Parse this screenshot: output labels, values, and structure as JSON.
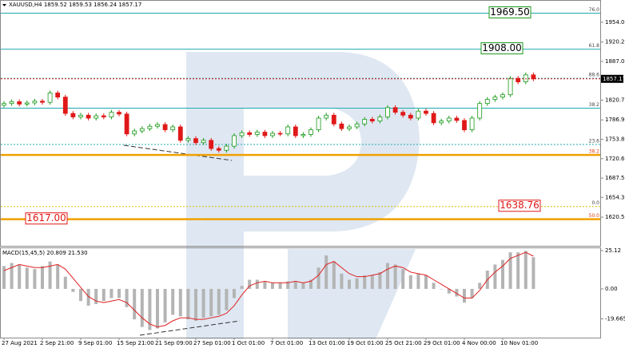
{
  "chart_data": [
    {
      "type": "candlestick",
      "title": "XAUUSD,H4 1859.52 1859.53 1856.24 1857.17",
      "categories": [
        "27 Aug 2021",
        null,
        null,
        null,
        null,
        "2 Sep 21:00",
        null,
        null,
        null,
        null,
        "9 Sep 01:00",
        null,
        null,
        null,
        null,
        "15 Sep 21:00",
        null,
        null,
        null,
        null,
        "21 Sep 09:00",
        null,
        null,
        null,
        null,
        "27 Sep 01:00",
        null,
        null,
        null,
        null,
        "1 Oct 01:00",
        null,
        null,
        null,
        null,
        "7 Oct 01:00",
        null,
        null,
        null,
        null,
        "13 Oct 01:00",
        null,
        null,
        null,
        null,
        "19 Oct 01:00",
        null,
        null,
        null,
        null,
        "25 Oct 21:00",
        null,
        null,
        null,
        null,
        "29 Oct 01:00",
        null,
        null,
        null,
        null,
        "4 Nov 00:00",
        null,
        null,
        null,
        null,
        "10 Nov 01:00",
        null,
        null,
        null,
        null
      ],
      "open": [
        1812,
        1815,
        1818,
        1814,
        1816,
        1819,
        1817,
        1833,
        1826,
        1798,
        1792,
        1795,
        1790,
        1794,
        1792,
        1800,
        1797,
        1763,
        1768,
        1772,
        1776,
        1779,
        1770,
        1775,
        1752,
        1755,
        1748,
        1752,
        1738,
        1735,
        1742,
        1760,
        1765,
        1762,
        1766,
        1760,
        1764,
        1763,
        1775,
        1760,
        1762,
        1770,
        1790,
        1795,
        1780,
        1772,
        1775,
        1780,
        1788,
        1785,
        1792,
        1808,
        1800,
        1795,
        1790,
        1802,
        1798,
        1782,
        1785,
        1790,
        1786,
        1770,
        1790,
        1815,
        1822,
        1826,
        1830,
        1858,
        1852,
        1864
      ],
      "high": [
        1819,
        1822,
        1822,
        1820,
        1823,
        1823,
        1837,
        1837,
        1830,
        1802,
        1799,
        1799,
        1798,
        1798,
        1804,
        1804,
        1801,
        1772,
        1776,
        1780,
        1783,
        1783,
        1779,
        1779,
        1759,
        1759,
        1756,
        1756,
        1742,
        1746,
        1764,
        1769,
        1769,
        1770,
        1770,
        1768,
        1768,
        1779,
        1779,
        1766,
        1774,
        1794,
        1799,
        1799,
        1784,
        1779,
        1784,
        1792,
        1792,
        1796,
        1812,
        1812,
        1804,
        1799,
        1806,
        1806,
        1802,
        1789,
        1794,
        1794,
        1790,
        1794,
        1819,
        1826,
        1830,
        1834,
        1862,
        1862,
        1868,
        1868
      ],
      "low": [
        1808,
        1811,
        1810,
        1810,
        1812,
        1813,
        1813,
        1822,
        1794,
        1788,
        1788,
        1786,
        1786,
        1788,
        1788,
        1793,
        1759,
        1759,
        1764,
        1768,
        1772,
        1766,
        1766,
        1748,
        1748,
        1744,
        1744,
        1734,
        1731,
        1731,
        1738,
        1756,
        1758,
        1758,
        1756,
        1756,
        1759,
        1759,
        1756,
        1756,
        1758,
        1766,
        1786,
        1776,
        1768,
        1768,
        1771,
        1776,
        1781,
        1781,
        1788,
        1796,
        1791,
        1786,
        1786,
        1794,
        1778,
        1778,
        1781,
        1782,
        1766,
        1766,
        1786,
        1811,
        1818,
        1822,
        1826,
        1848,
        1848,
        1853.17
      ],
      "close": [
        1815,
        1818,
        1814,
        1816,
        1819,
        1817,
        1833,
        1826,
        1798,
        1792,
        1795,
        1790,
        1794,
        1792,
        1800,
        1797,
        1763,
        1768,
        1772,
        1776,
        1779,
        1770,
        1775,
        1752,
        1755,
        1748,
        1752,
        1738,
        1735,
        1742,
        1760,
        1765,
        1762,
        1766,
        1760,
        1764,
        1763,
        1775,
        1760,
        1762,
        1770,
        1790,
        1795,
        1780,
        1772,
        1775,
        1780,
        1788,
        1785,
        1792,
        1808,
        1800,
        1795,
        1790,
        1802,
        1798,
        1782,
        1785,
        1790,
        1786,
        1770,
        1790,
        1815,
        1822,
        1826,
        1830,
        1858,
        1852,
        1864,
        1857.17
      ],
      "up_color": "#1a9a1a",
      "down_color": "#e01818",
      "ylim": [
        1571.5,
        1990.7
      ],
      "yticks": [
        {
          "value": 1954,
          "label": "1954.00"
        },
        {
          "value": 1920.2,
          "label": "1920.20"
        },
        1887.05,
        1820.75,
        1786.95,
        {
          "value": 1753.8,
          "label": "1753.80"
        },
        1720.65,
        {
          "value": 1687.5,
          "label": "1687.50"
        },
        1654.35,
        1620.55
      ],
      "levels": [
        {
          "value": 1969.5,
          "label": "76.0",
          "color": "#20a8b0",
          "style": "solid"
        },
        {
          "value": 1908,
          "label": "61.8",
          "color": "#20a8b0",
          "style": "solid"
        },
        {
          "value": 1858,
          "label": "88.6",
          "color": "#20a8b0",
          "style": "dotted"
        },
        {
          "value": 1807,
          "label": "38.2",
          "color": "#20a8b0",
          "style": "solid"
        },
        {
          "value": 1745,
          "label": "23.6",
          "color": "#20a8b0",
          "style": "dotted"
        },
        {
          "value": 1727,
          "label": "38.2",
          "color": "#f0a000",
          "style": "thick"
        },
        {
          "value": 1638.76,
          "label": "0.0",
          "color": "#d8c000",
          "style": "dotted"
        },
        {
          "value": 1617,
          "label": "50.0",
          "color": "#f0a000",
          "style": "thick"
        }
      ],
      "callouts": [
        {
          "value": 1969.5,
          "label": "1969.50",
          "color": "#1a9a1a"
        },
        {
          "value": 1908,
          "label": "1908.00",
          "color": "#1a9a1a"
        },
        {
          "value": 1638.76,
          "label": "1638.76",
          "color": "#e01818"
        },
        {
          "value": 1617,
          "label": "1617.00",
          "color": "#e01818"
        }
      ],
      "last_price": {
        "value": 1857.17,
        "label": "1857.17",
        "color": "#e01818"
      }
    },
    {
      "type": "macd",
      "title": "MACD(15,45,5) 20.809 21.530",
      "histogram": {
        "color": "#b4b4b4",
        "values": [
          15,
          17,
          16,
          14,
          13,
          15,
          18,
          16,
          8,
          -2,
          -8,
          -11,
          -10,
          -8,
          -6,
          -6,
          -12,
          -20,
          -25,
          -27,
          -26,
          -22,
          -17,
          -18,
          -20,
          -21,
          -19,
          -18,
          -17,
          -14,
          -6,
          2,
          6,
          6,
          5,
          4,
          4,
          5,
          5,
          4,
          6,
          14,
          22,
          18,
          10,
          6,
          7,
          9,
          9,
          11,
          17,
          16,
          13,
          9,
          10,
          9,
          4,
          0,
          -3,
          -5,
          -9,
          -6,
          4,
          12,
          16,
          19,
          24,
          24,
          25,
          20.809
        ]
      },
      "signal": {
        "color": "#e02020",
        "values": [
          12,
          14,
          16,
          15,
          14,
          14,
          15,
          16,
          13,
          7,
          1,
          -5,
          -8,
          -9,
          -8,
          -7,
          -9,
          -14,
          -19,
          -23,
          -25,
          -24,
          -21,
          -19,
          -19,
          -20,
          -20,
          -19,
          -18,
          -16,
          -11,
          -4,
          2,
          4,
          5,
          4,
          4,
          4,
          5,
          4,
          5,
          9,
          16,
          18,
          14,
          10,
          8,
          8,
          9,
          10,
          13,
          15,
          14,
          11,
          10,
          9,
          6,
          3,
          0,
          -3,
          -6,
          -6,
          -1,
          6,
          11,
          15,
          20,
          22,
          24,
          21.53
        ]
      },
      "ylim": [
        -32,
        26.7
      ],
      "yticks": [
        25.12,
        {
          "value": 0,
          "label": "0.00"
        },
        -19.665
      ]
    }
  ]
}
